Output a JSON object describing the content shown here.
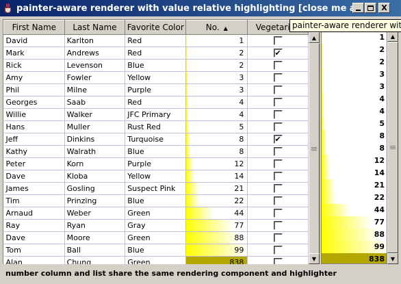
{
  "window": {
    "title": "painter-aware renderer with value relative highlighting  [close me and demo exits]",
    "minimize_icon": "minimize-icon",
    "maximize_icon": "maximize-icon",
    "close_glyph": "X"
  },
  "table": {
    "columns": [
      "First Name",
      "Last Name",
      "Favorite Color",
      "No.",
      "Vegetarian"
    ],
    "sort_column": "No.",
    "sort_indicator": "▲",
    "rows": [
      {
        "first": "David",
        "last": "Karlton",
        "color": "Red",
        "no": "1",
        "veg": false
      },
      {
        "first": "Mark",
        "last": "Andrews",
        "color": "Red",
        "no": "2",
        "veg": true
      },
      {
        "first": "Rick",
        "last": "Levenson",
        "color": "Blue",
        "no": "2",
        "veg": false
      },
      {
        "first": "Amy",
        "last": "Fowler",
        "color": "Yellow",
        "no": "3",
        "veg": false
      },
      {
        "first": "Phil",
        "last": "Milne",
        "color": "Purple",
        "no": "3",
        "veg": false
      },
      {
        "first": "Georges",
        "last": "Saab",
        "color": "Red",
        "no": "4",
        "veg": false
      },
      {
        "first": "Willie",
        "last": "Walker",
        "color": "JFC Primary",
        "no": "4",
        "veg": false
      },
      {
        "first": "Hans",
        "last": "Muller",
        "color": "Rust Red",
        "no": "5",
        "veg": false
      },
      {
        "first": "Jeff",
        "last": "Dinkins",
        "color": "Turquoise",
        "no": "8",
        "veg": true
      },
      {
        "first": "Kathy",
        "last": "Walrath",
        "color": "Blue",
        "no": "8",
        "veg": false
      },
      {
        "first": "Peter",
        "last": "Korn",
        "color": "Purple",
        "no": "12",
        "veg": false
      },
      {
        "first": "Dave",
        "last": "Kloba",
        "color": "Yellow",
        "no": "14",
        "veg": false
      },
      {
        "first": "James",
        "last": "Gosling",
        "color": "Suspect Pink",
        "no": "21",
        "veg": false
      },
      {
        "first": "Tim",
        "last": "Prinzing",
        "color": "Blue",
        "no": "22",
        "veg": false
      },
      {
        "first": "Arnaud",
        "last": "Weber",
        "color": "Green",
        "no": "44",
        "veg": false
      },
      {
        "first": "Ray",
        "last": "Ryan",
        "color": "Gray",
        "no": "77",
        "veg": false
      },
      {
        "first": "Dave",
        "last": "Moore",
        "color": "Green",
        "no": "88",
        "veg": false
      },
      {
        "first": "Tom",
        "last": "Ball",
        "color": "Blue",
        "no": "99",
        "veg": false
      },
      {
        "first": "Alan",
        "last": "Chung",
        "color": "Green",
        "no": "838",
        "veg": false
      }
    ],
    "selected_row": 18,
    "check_glyph": "✔"
  },
  "list": {
    "items": [
      "1",
      "2",
      "2",
      "3",
      "3",
      "4",
      "4",
      "5",
      "8",
      "8",
      "12",
      "14",
      "21",
      "22",
      "44",
      "77",
      "88",
      "99",
      "838"
    ],
    "selected_index": 18
  },
  "tooltip": {
    "text": "painter-aware renderer with value relative highlighting"
  },
  "status": {
    "text": "number column and list share the same rendering component and highlighter"
  },
  "colors": {
    "highlight": "#ffff00",
    "selection": "#b3a700",
    "title_bar": "#0a246a"
  }
}
